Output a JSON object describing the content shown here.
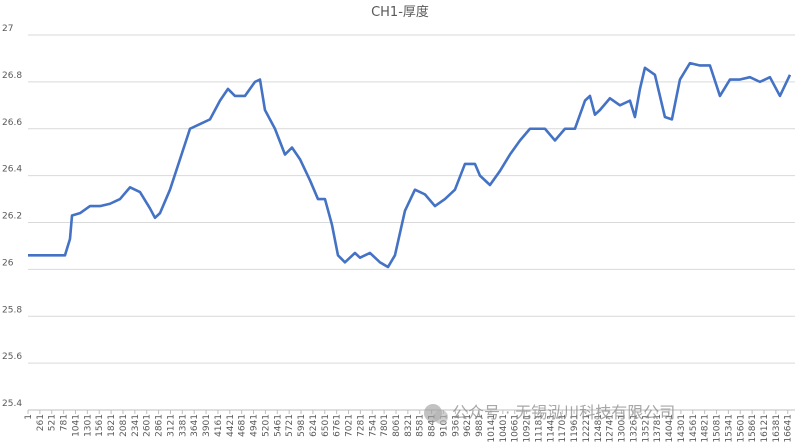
{
  "chart_data": {
    "type": "line",
    "title": "CH1-厚度",
    "x": [
      1,
      811,
      921,
      965,
      1140,
      1359,
      1578,
      1797,
      2016,
      2235,
      2454,
      2673,
      2782,
      2892,
      3111,
      3330,
      3549,
      3768,
      3987,
      4206,
      4381,
      4534,
      4753,
      4972,
      5082,
      5191,
      5410,
      5629,
      5783,
      5958,
      6177,
      6352,
      6505,
      6659,
      6790,
      6943,
      7162,
      7272,
      7491,
      7710,
      7885,
      8038,
      8257,
      8476,
      8695,
      8914,
      9133,
      9352,
      9571,
      9790,
      9900,
      10119,
      10338,
      10557,
      10776,
      10995,
      11324,
      11542,
      11762,
      11980,
      12200,
      12309,
      12418,
      12528,
      12747,
      12966,
      13185,
      13294,
      13404,
      13513,
      13732,
      13951,
      14104,
      14280,
      14499,
      14718,
      14937,
      15156,
      15375,
      15594,
      15813,
      16032,
      16251,
      16470,
      16690
    ],
    "series": [
      {
        "name": "CH1-厚度",
        "color": "#4472c4",
        "values": [
          26.06,
          26.06,
          26.13,
          26.23,
          26.24,
          26.27,
          26.27,
          26.28,
          26.3,
          26.35,
          26.33,
          26.26,
          26.22,
          26.24,
          26.34,
          26.47,
          26.6,
          26.62,
          26.64,
          26.72,
          26.77,
          26.74,
          26.74,
          26.8,
          26.81,
          26.68,
          26.6,
          26.49,
          26.52,
          26.47,
          26.38,
          26.3,
          26.3,
          26.19,
          26.06,
          26.03,
          26.07,
          26.05,
          26.07,
          26.03,
          26.01,
          26.06,
          26.25,
          26.34,
          26.32,
          26.27,
          26.3,
          26.34,
          26.45,
          26.45,
          26.4,
          26.36,
          26.42,
          26.49,
          26.55,
          26.6,
          26.6,
          26.55,
          26.6,
          26.6,
          26.72,
          26.74,
          26.66,
          26.68,
          26.73,
          26.7,
          26.72,
          26.65,
          26.77,
          26.86,
          26.83,
          26.65,
          26.64,
          26.81,
          26.88,
          26.87,
          26.87,
          26.74,
          26.81,
          26.81,
          26.82,
          26.8,
          26.82,
          26.74,
          26.83
        ]
      }
    ],
    "xlim": [
      1,
      16800
    ],
    "xticks": [
      1,
      261,
      521,
      781,
      1041,
      1301,
      1561,
      1821,
      2081,
      2341,
      2601,
      2861,
      3121,
      3381,
      3641,
      3901,
      4161,
      4421,
      4681,
      4941,
      5201,
      5461,
      5721,
      5981,
      6241,
      6501,
      6761,
      7021,
      7281,
      7541,
      7801,
      8061,
      8321,
      8581,
      8841,
      9101,
      9361,
      9621,
      9881,
      10141,
      10401,
      10661,
      10921,
      11181,
      11441,
      11701,
      11961,
      12221,
      12481,
      12741,
      13001,
      13261,
      13521,
      13781,
      14041,
      14301,
      14561,
      14821,
      15081,
      15341,
      15601,
      15861,
      16121,
      16381,
      16641
    ],
    "ylim": [
      25.4,
      27
    ],
    "yticks": [
      25.4,
      25.6,
      25.8,
      26,
      26.2,
      26.4,
      26.6,
      26.8,
      27
    ],
    "grid": true,
    "watermark": "公众号 · 无锡泓川科技有限公司"
  }
}
